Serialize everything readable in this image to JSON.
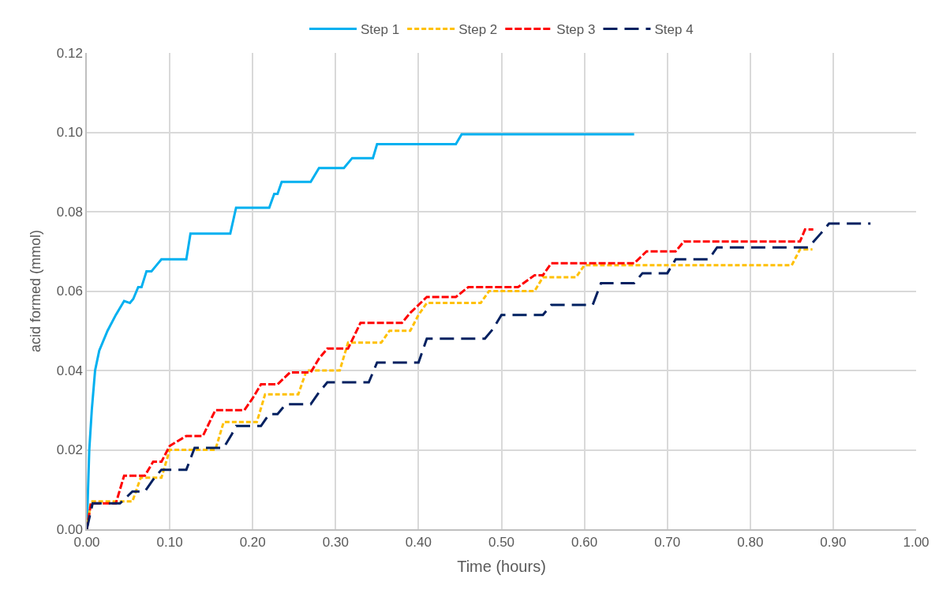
{
  "chart_data": {
    "type": "line",
    "xlabel": "Time (hours)",
    "ylabel": "acid formed (mmol)",
    "xlim": [
      0,
      1
    ],
    "ylim": [
      0,
      0.12
    ],
    "xticks": [
      {
        "value": 0,
        "label": "0.00"
      },
      {
        "value": 0.1,
        "label": "0.10"
      },
      {
        "value": 0.2,
        "label": "0.20"
      },
      {
        "value": 0.3,
        "label": "0.30"
      },
      {
        "value": 0.4,
        "label": "0.40"
      },
      {
        "value": 0.5,
        "label": "0.50"
      },
      {
        "value": 0.6,
        "label": "0.60"
      },
      {
        "value": 0.7,
        "label": "0.70"
      },
      {
        "value": 0.8,
        "label": "0.80"
      },
      {
        "value": 0.9,
        "label": "0.90"
      },
      {
        "value": 1,
        "label": "1.00"
      }
    ],
    "yticks": [
      {
        "value": 0,
        "label": "0.00"
      },
      {
        "value": 0.02,
        "label": "0.02"
      },
      {
        "value": 0.04,
        "label": "0.04"
      },
      {
        "value": 0.06,
        "label": "0.06"
      },
      {
        "value": 0.08,
        "label": "0.08"
      },
      {
        "value": 0.1,
        "label": "0.10"
      },
      {
        "value": 0.12,
        "label": "0.12"
      }
    ],
    "grid": true,
    "legend": "top",
    "marker": "none",
    "series": [
      {
        "name": "Step 1",
        "color": "#00b0f0",
        "line_style": "solid",
        "x": [
          0,
          0.003,
          0.006,
          0.01,
          0.015,
          0.025,
          0.035,
          0.045,
          0.052,
          0.056,
          0.062,
          0.066,
          0.072,
          0.078,
          0.082,
          0.09,
          0.12,
          0.125,
          0.13,
          0.173,
          0.18,
          0.22,
          0.226,
          0.23,
          0.235,
          0.24,
          0.27,
          0.28,
          0.31,
          0.32,
          0.345,
          0.35,
          0.445,
          0.452,
          0.66
        ],
        "values": [
          0,
          0.02,
          0.03,
          0.04,
          0.045,
          0.05,
          0.054,
          0.0575,
          0.057,
          0.058,
          0.061,
          0.061,
          0.065,
          0.065,
          0.066,
          0.068,
          0.068,
          0.0745,
          0.0745,
          0.0745,
          0.081,
          0.081,
          0.0845,
          0.0845,
          0.0875,
          0.0875,
          0.0875,
          0.091,
          0.091,
          0.0935,
          0.0935,
          0.097,
          0.097,
          0.0995,
          0.0995
        ]
      },
      {
        "name": "Step 2",
        "color": "#ffc000",
        "line_style": "dotted",
        "x": [
          0,
          0.005,
          0.055,
          0.065,
          0.09,
          0.1,
          0.155,
          0.165,
          0.205,
          0.215,
          0.255,
          0.265,
          0.305,
          0.315,
          0.355,
          0.365,
          0.39,
          0.4,
          0.41,
          0.475,
          0.485,
          0.54,
          0.55,
          0.59,
          0.6,
          0.85,
          0.86,
          0.875
        ],
        "values": [
          0,
          0.007,
          0.007,
          0.013,
          0.013,
          0.02,
          0.02,
          0.027,
          0.027,
          0.034,
          0.034,
          0.04,
          0.04,
          0.047,
          0.047,
          0.05,
          0.05,
          0.054,
          0.057,
          0.057,
          0.06,
          0.06,
          0.0635,
          0.0635,
          0.0665,
          0.0665,
          0.0705,
          0.0705
        ]
      },
      {
        "name": "Step 3",
        "color": "#ff0000",
        "line_style": "dashed",
        "x": [
          0,
          0.005,
          0.035,
          0.045,
          0.07,
          0.08,
          0.09,
          0.1,
          0.12,
          0.14,
          0.155,
          0.19,
          0.2,
          0.21,
          0.23,
          0.245,
          0.27,
          0.28,
          0.29,
          0.315,
          0.33,
          0.38,
          0.39,
          0.41,
          0.445,
          0.46,
          0.52,
          0.54,
          0.55,
          0.56,
          0.66,
          0.675,
          0.71,
          0.72,
          0.86,
          0.866,
          0.876
        ],
        "values": [
          0,
          0.0065,
          0.0065,
          0.0135,
          0.0135,
          0.017,
          0.017,
          0.021,
          0.0235,
          0.0235,
          0.03,
          0.03,
          0.033,
          0.0365,
          0.0365,
          0.0395,
          0.0395,
          0.043,
          0.0455,
          0.0455,
          0.052,
          0.052,
          0.0545,
          0.0585,
          0.0585,
          0.061,
          0.061,
          0.064,
          0.064,
          0.067,
          0.067,
          0.07,
          0.07,
          0.0725,
          0.0725,
          0.0755,
          0.0755
        ]
      },
      {
        "name": "Step 4",
        "color": "#002060",
        "line_style": "longdash",
        "x": [
          0,
          0.007,
          0.04,
          0.055,
          0.07,
          0.08,
          0.09,
          0.12,
          0.13,
          0.165,
          0.175,
          0.18,
          0.21,
          0.22,
          0.23,
          0.24,
          0.27,
          0.28,
          0.29,
          0.34,
          0.35,
          0.4,
          0.41,
          0.48,
          0.49,
          0.5,
          0.55,
          0.56,
          0.61,
          0.62,
          0.66,
          0.67,
          0.7,
          0.71,
          0.75,
          0.76,
          0.87,
          0.885,
          0.895,
          0.945
        ],
        "values": [
          0,
          0.0065,
          0.0065,
          0.0095,
          0.0095,
          0.0125,
          0.015,
          0.015,
          0.0205,
          0.0205,
          0.024,
          0.026,
          0.026,
          0.029,
          0.029,
          0.0315,
          0.0315,
          0.0345,
          0.037,
          0.037,
          0.042,
          0.042,
          0.048,
          0.048,
          0.0505,
          0.054,
          0.054,
          0.0565,
          0.0565,
          0.062,
          0.062,
          0.0645,
          0.0645,
          0.068,
          0.068,
          0.071,
          0.071,
          0.0745,
          0.077,
          0.077
        ]
      }
    ]
  }
}
